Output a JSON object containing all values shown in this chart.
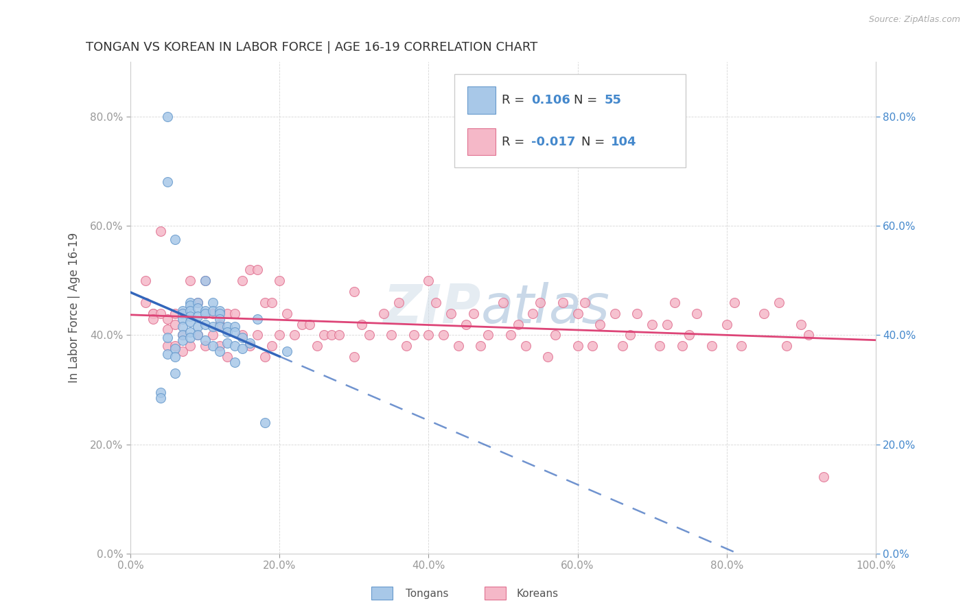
{
  "title": "TONGAN VS KOREAN IN LABOR FORCE | AGE 16-19 CORRELATION CHART",
  "source": "Source: ZipAtlas.com",
  "ylabel": "In Labor Force | Age 16-19",
  "xlim": [
    0.0,
    1.0
  ],
  "ylim": [
    0.0,
    0.9
  ],
  "xticks": [
    0.0,
    0.2,
    0.4,
    0.6,
    0.8,
    1.0
  ],
  "yticks": [
    0.0,
    0.2,
    0.4,
    0.6,
    0.8
  ],
  "xticklabels": [
    "0.0%",
    "20.0%",
    "40.0%",
    "60.0%",
    "80.0%",
    "100.0%"
  ],
  "yticklabels": [
    "0.0%",
    "20.0%",
    "40.0%",
    "60.0%",
    "80.0%"
  ],
  "tongan_color": "#a8c8e8",
  "korean_color": "#f5b8c8",
  "tongan_edge": "#6699cc",
  "korean_edge": "#e07090",
  "trend_tongan_color": "#3366bb",
  "trend_korean_color": "#dd4477",
  "watermark_zip": "ZIP",
  "watermark_atlas": "atlas",
  "tongan_x": [
    0.04,
    0.04,
    0.05,
    0.05,
    0.05,
    0.05,
    0.06,
    0.06,
    0.06,
    0.06,
    0.07,
    0.07,
    0.07,
    0.07,
    0.07,
    0.07,
    0.08,
    0.08,
    0.08,
    0.08,
    0.08,
    0.08,
    0.08,
    0.09,
    0.09,
    0.09,
    0.09,
    0.09,
    0.1,
    0.1,
    0.1,
    0.1,
    0.1,
    0.11,
    0.11,
    0.11,
    0.11,
    0.12,
    0.12,
    0.12,
    0.12,
    0.12,
    0.13,
    0.13,
    0.13,
    0.14,
    0.14,
    0.14,
    0.15,
    0.15,
    0.16,
    0.17,
    0.18,
    0.21,
    0.14
  ],
  "tongan_y": [
    0.295,
    0.285,
    0.8,
    0.68,
    0.395,
    0.365,
    0.575,
    0.375,
    0.36,
    0.33,
    0.445,
    0.44,
    0.43,
    0.415,
    0.4,
    0.39,
    0.46,
    0.455,
    0.445,
    0.435,
    0.425,
    0.405,
    0.395,
    0.46,
    0.45,
    0.435,
    0.415,
    0.4,
    0.5,
    0.445,
    0.44,
    0.42,
    0.39,
    0.46,
    0.445,
    0.415,
    0.38,
    0.445,
    0.44,
    0.43,
    0.415,
    0.37,
    0.415,
    0.405,
    0.385,
    0.415,
    0.405,
    0.38,
    0.395,
    0.375,
    0.385,
    0.43,
    0.24,
    0.37,
    0.35
  ],
  "korean_x": [
    0.02,
    0.02,
    0.03,
    0.03,
    0.03,
    0.04,
    0.04,
    0.05,
    0.05,
    0.05,
    0.06,
    0.06,
    0.06,
    0.07,
    0.07,
    0.07,
    0.08,
    0.08,
    0.09,
    0.09,
    0.1,
    0.1,
    0.1,
    0.11,
    0.11,
    0.12,
    0.12,
    0.13,
    0.13,
    0.14,
    0.15,
    0.15,
    0.16,
    0.16,
    0.17,
    0.17,
    0.18,
    0.18,
    0.19,
    0.19,
    0.2,
    0.2,
    0.21,
    0.22,
    0.23,
    0.24,
    0.25,
    0.26,
    0.27,
    0.28,
    0.3,
    0.3,
    0.31,
    0.32,
    0.34,
    0.35,
    0.36,
    0.37,
    0.38,
    0.4,
    0.4,
    0.41,
    0.42,
    0.43,
    0.44,
    0.45,
    0.46,
    0.47,
    0.48,
    0.5,
    0.51,
    0.52,
    0.53,
    0.54,
    0.55,
    0.56,
    0.57,
    0.58,
    0.6,
    0.6,
    0.61,
    0.62,
    0.63,
    0.65,
    0.66,
    0.67,
    0.68,
    0.7,
    0.71,
    0.72,
    0.73,
    0.74,
    0.75,
    0.76,
    0.78,
    0.8,
    0.81,
    0.82,
    0.85,
    0.87,
    0.88,
    0.9,
    0.91,
    0.93
  ],
  "korean_y": [
    0.5,
    0.46,
    0.44,
    0.44,
    0.43,
    0.59,
    0.44,
    0.43,
    0.41,
    0.38,
    0.44,
    0.42,
    0.38,
    0.44,
    0.4,
    0.37,
    0.5,
    0.38,
    0.46,
    0.4,
    0.5,
    0.44,
    0.38,
    0.44,
    0.4,
    0.42,
    0.38,
    0.44,
    0.36,
    0.44,
    0.5,
    0.4,
    0.52,
    0.38,
    0.52,
    0.4,
    0.46,
    0.36,
    0.46,
    0.38,
    0.5,
    0.4,
    0.44,
    0.4,
    0.42,
    0.42,
    0.38,
    0.4,
    0.4,
    0.4,
    0.48,
    0.36,
    0.42,
    0.4,
    0.44,
    0.4,
    0.46,
    0.38,
    0.4,
    0.5,
    0.4,
    0.46,
    0.4,
    0.44,
    0.38,
    0.42,
    0.44,
    0.38,
    0.4,
    0.46,
    0.4,
    0.42,
    0.38,
    0.44,
    0.46,
    0.36,
    0.4,
    0.46,
    0.44,
    0.38,
    0.46,
    0.38,
    0.42,
    0.44,
    0.38,
    0.4,
    0.44,
    0.42,
    0.38,
    0.42,
    0.46,
    0.38,
    0.4,
    0.44,
    0.38,
    0.42,
    0.46,
    0.38,
    0.44,
    0.46,
    0.38,
    0.42,
    0.4,
    0.14
  ]
}
